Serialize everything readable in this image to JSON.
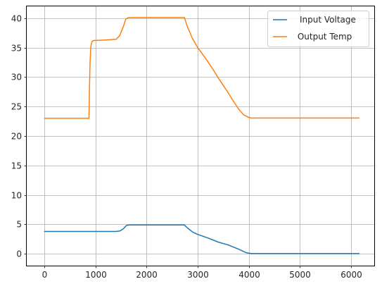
{
  "chart_data": {
    "type": "line",
    "grid": true,
    "legend_position": "top-right",
    "xlim": [
      -350,
      6460
    ],
    "ylim": [
      -2.0,
      42.0
    ],
    "xticks": [
      0,
      1000,
      2000,
      3000,
      4000,
      5000,
      6000
    ],
    "yticks": [
      0,
      5,
      10,
      15,
      20,
      25,
      30,
      35,
      40
    ],
    "xtick_labels": [
      "0",
      "1000",
      "2000",
      "3000",
      "4000",
      "5000",
      "6000"
    ],
    "ytick_labels": [
      "0",
      "5",
      "10",
      "15",
      "20",
      "25",
      "30",
      "35",
      "40"
    ],
    "series": [
      {
        "name": "Input Voltage",
        "color": "#1f77b4",
        "points": [
          [
            0,
            3.8
          ],
          [
            400,
            3.8
          ],
          [
            800,
            3.8
          ],
          [
            1000,
            3.8
          ],
          [
            1200,
            3.8
          ],
          [
            1400,
            3.8
          ],
          [
            1480,
            3.9
          ],
          [
            1550,
            4.3
          ],
          [
            1600,
            4.8
          ],
          [
            1650,
            4.9
          ],
          [
            2000,
            4.9
          ],
          [
            2400,
            4.9
          ],
          [
            2740,
            4.9
          ],
          [
            2800,
            4.4
          ],
          [
            2900,
            3.7
          ],
          [
            3000,
            3.3
          ],
          [
            3200,
            2.7
          ],
          [
            3400,
            2.0
          ],
          [
            3600,
            1.5
          ],
          [
            3800,
            0.8
          ],
          [
            3950,
            0.2
          ],
          [
            4050,
            0.05
          ],
          [
            4500,
            0.05
          ],
          [
            5000,
            0.05
          ],
          [
            5500,
            0.05
          ],
          [
            6160,
            0.05
          ]
        ]
      },
      {
        "name": " Output Temp",
        "color": "#ff7f0e",
        "points": [
          [
            0,
            23.0
          ],
          [
            400,
            23.0
          ],
          [
            870,
            23.0
          ],
          [
            880,
            28.0
          ],
          [
            890,
            32.5
          ],
          [
            905,
            35.0
          ],
          [
            925,
            36.0
          ],
          [
            960,
            36.2
          ],
          [
            1200,
            36.3
          ],
          [
            1400,
            36.4
          ],
          [
            1470,
            37.0
          ],
          [
            1540,
            38.5
          ],
          [
            1590,
            39.8
          ],
          [
            1640,
            40.1
          ],
          [
            1700,
            40.1
          ],
          [
            2000,
            40.1
          ],
          [
            2400,
            40.1
          ],
          [
            2740,
            40.1
          ],
          [
            2800,
            38.5
          ],
          [
            2900,
            36.5
          ],
          [
            3000,
            35.0
          ],
          [
            3100,
            33.8
          ],
          [
            3200,
            32.6
          ],
          [
            3300,
            31.3
          ],
          [
            3400,
            29.9
          ],
          [
            3500,
            28.6
          ],
          [
            3600,
            27.3
          ],
          [
            3700,
            25.9
          ],
          [
            3800,
            24.6
          ],
          [
            3900,
            23.6
          ],
          [
            4000,
            23.15
          ],
          [
            4050,
            23.05
          ],
          [
            4500,
            23.05
          ],
          [
            5000,
            23.05
          ],
          [
            5500,
            23.05
          ],
          [
            6160,
            23.05
          ]
        ]
      }
    ]
  }
}
